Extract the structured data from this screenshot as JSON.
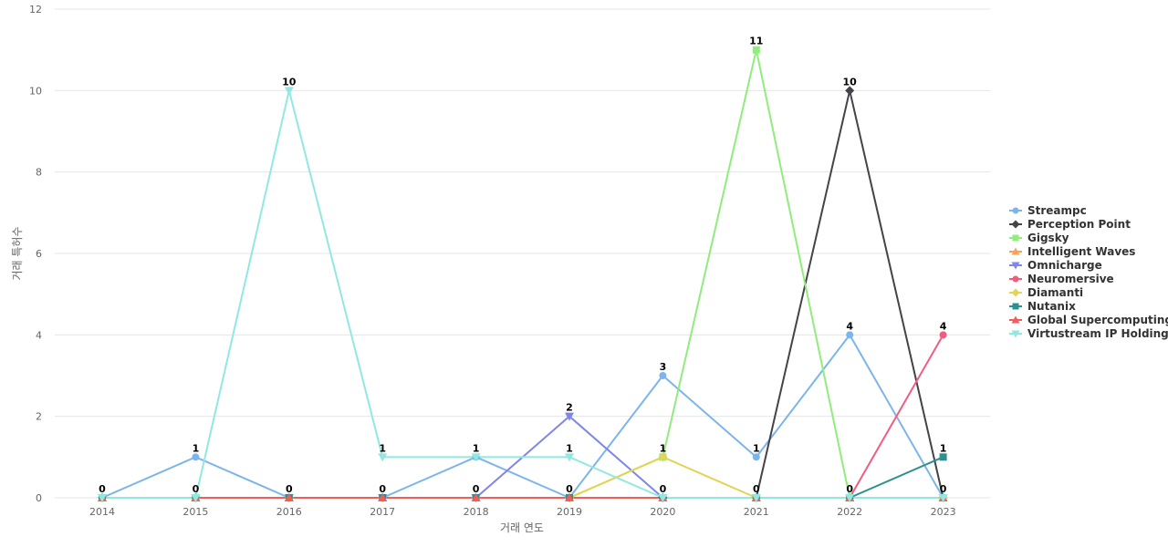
{
  "chart_data": {
    "type": "line",
    "xlabel": "거래 연도",
    "ylabel": "거래 특허수",
    "ylim": [
      0,
      12
    ],
    "yticks": [
      0,
      2,
      4,
      6,
      8,
      10,
      12
    ],
    "categories": [
      "2014",
      "2015",
      "2016",
      "2017",
      "2018",
      "2019",
      "2020",
      "2021",
      "2022",
      "2023"
    ],
    "legend_position": "right",
    "grid": true,
    "series": [
      {
        "name": "Streampc",
        "color": "#7cb5ec",
        "marker": "circle",
        "values": [
          0,
          1,
          0,
          0,
          1,
          0,
          3,
          1,
          4,
          0
        ]
      },
      {
        "name": "Perception Point",
        "color": "#434348",
        "marker": "diamond",
        "values": [
          0,
          0,
          0,
          0,
          0,
          0,
          0,
          0,
          10,
          0
        ]
      },
      {
        "name": "Gigsky",
        "color": "#90ed7d",
        "marker": "square",
        "values": [
          0,
          0,
          0,
          0,
          0,
          0,
          1,
          11,
          0,
          0
        ]
      },
      {
        "name": "Intelligent Waves",
        "color": "#f7a35c",
        "marker": "triangle",
        "values": [
          0,
          0,
          0,
          0,
          0,
          0,
          0,
          0,
          0,
          0
        ]
      },
      {
        "name": "Omnicharge",
        "color": "#8085e9",
        "marker": "triangle-down",
        "values": [
          0,
          0,
          0,
          0,
          0,
          2,
          0,
          0,
          0,
          0
        ]
      },
      {
        "name": "Neuromersive",
        "color": "#f15c80",
        "marker": "circle",
        "values": [
          0,
          0,
          0,
          0,
          0,
          0,
          0,
          0,
          0,
          4
        ]
      },
      {
        "name": "Diamanti",
        "color": "#e4d354",
        "marker": "diamond",
        "values": [
          0,
          0,
          0,
          0,
          0,
          0,
          1,
          0,
          0,
          0
        ]
      },
      {
        "name": "Nutanix",
        "color": "#2b908f",
        "marker": "square",
        "values": [
          0,
          0,
          0,
          0,
          0,
          0,
          0,
          0,
          0,
          1
        ]
      },
      {
        "name": "Global Supercomputing",
        "color": "#f45b5b",
        "marker": "triangle",
        "values": [
          0,
          0,
          0,
          0,
          0,
          0,
          0,
          0,
          0,
          0
        ]
      },
      {
        "name": "Virtustream IP Holding",
        "color": "#91e8e1",
        "marker": "triangle-down",
        "values": [
          0,
          0,
          10,
          1,
          1,
          1,
          0,
          0,
          0,
          0
        ]
      }
    ],
    "data_labels": [
      {
        "series": "Streampc",
        "index": 0,
        "text": "0"
      },
      {
        "series": "Streampc",
        "index": 1,
        "text": "1"
      },
      {
        "series": "Virtustream IP Holding",
        "index": 1,
        "text": "0"
      },
      {
        "series": "Virtustream IP Holding",
        "index": 2,
        "text": "10"
      },
      {
        "series": "Streampc",
        "index": 2,
        "text": "0"
      },
      {
        "series": "Virtustream IP Holding",
        "index": 3,
        "text": "1"
      },
      {
        "series": "Streampc",
        "index": 3,
        "text": "0"
      },
      {
        "series": "Virtustream IP Holding",
        "index": 4,
        "text": "1"
      },
      {
        "series": "Omnicharge",
        "index": 4,
        "text": "0"
      },
      {
        "series": "Omnicharge",
        "index": 5,
        "text": "2"
      },
      {
        "series": "Virtustream IP Holding",
        "index": 5,
        "text": "1"
      },
      {
        "series": "Streampc",
        "index": 5,
        "text": "0"
      },
      {
        "series": "Streampc",
        "index": 6,
        "text": "3"
      },
      {
        "series": "Diamanti",
        "index": 6,
        "text": "1"
      },
      {
        "series": "Omnicharge",
        "index": 6,
        "text": "0"
      },
      {
        "series": "Gigsky",
        "index": 7,
        "text": "11"
      },
      {
        "series": "Streampc",
        "index": 7,
        "text": "1"
      },
      {
        "series": "Diamanti",
        "index": 7,
        "text": "0"
      },
      {
        "series": "Perception Point",
        "index": 8,
        "text": "10"
      },
      {
        "series": "Streampc",
        "index": 8,
        "text": "4"
      },
      {
        "series": "Neuromersive",
        "index": 8,
        "text": "0"
      },
      {
        "series": "Neuromersive",
        "index": 9,
        "text": "4"
      },
      {
        "series": "Nutanix",
        "index": 9,
        "text": "1"
      },
      {
        "series": "Perception Point",
        "index": 9,
        "text": "0"
      }
    ]
  }
}
